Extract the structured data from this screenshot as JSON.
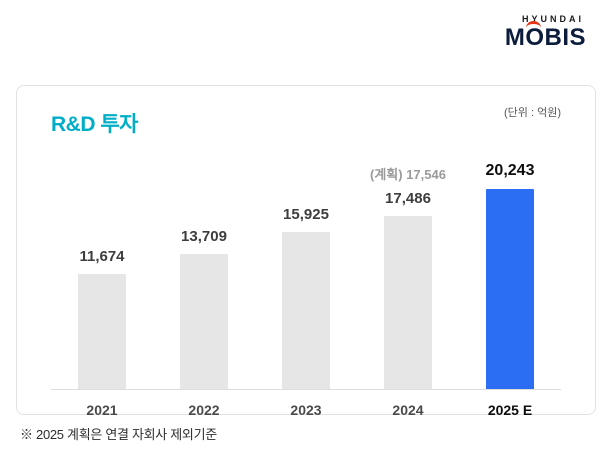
{
  "logo": {
    "hyundai": "HYUNDAI",
    "mobis_m": "M",
    "mobis_o": "O",
    "mobis_rest": "BIS",
    "accent_color": "#e63312"
  },
  "card": {
    "title": "R&D 투자",
    "unit_label": "(단위 : 억원)"
  },
  "footnote": "※ 2025 계획은 연결 자회사 제외기준",
  "chart_data": {
    "type": "bar",
    "title": "R&D 투자",
    "unit": "(단위 : 억원)",
    "categories": [
      "2021",
      "2022",
      "2023",
      "2024",
      "2025 E"
    ],
    "values": [
      11674,
      13709,
      15925,
      17486,
      20243
    ],
    "value_labels": [
      "11,674",
      "13,709",
      "15,925",
      "17,486",
      "20,243"
    ],
    "annotations": [
      {
        "index": 3,
        "text": "(계획) 17,546"
      }
    ],
    "highlight_index": 4,
    "colors": {
      "bar": "#e6e6e6",
      "highlight_bar": "#2b6ef3"
    },
    "ylim": [
      0,
      22000
    ],
    "legend": false,
    "grid": false
  }
}
